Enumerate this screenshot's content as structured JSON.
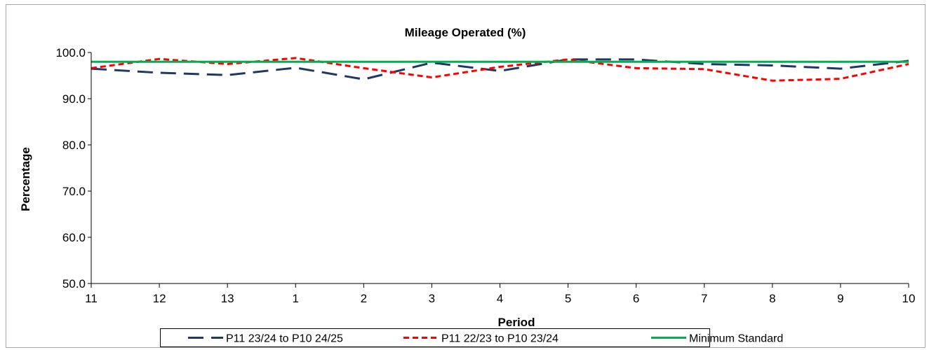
{
  "chart_data": {
    "type": "line",
    "title": "Mileage Operated (%)",
    "xlabel": "Period",
    "ylabel": "Percentage",
    "categories": [
      "11",
      "12",
      "13",
      "1",
      "2",
      "3",
      "4",
      "5",
      "6",
      "7",
      "8",
      "9",
      "10"
    ],
    "ylim": [
      50,
      100
    ],
    "yticks": [
      "50.0",
      "60.0",
      "70.0",
      "80.0",
      "90.0",
      "100.0"
    ],
    "grid": false,
    "legend_position": "bottom",
    "series": [
      {
        "name": "P11 23/24 to P10 24/25",
        "color": "#1f3864",
        "dash": "long-dash",
        "values": [
          96.5,
          95.6,
          95.1,
          96.7,
          94.2,
          97.8,
          96.0,
          98.5,
          98.5,
          97.5,
          97.2,
          96.5,
          98.2
        ]
      },
      {
        "name": "P11 22/23 to P10 23/24",
        "color": "#ff0000",
        "dash": "short-dash",
        "values": [
          96.6,
          98.6,
          97.5,
          98.8,
          96.6,
          94.6,
          96.9,
          98.5,
          96.6,
          96.4,
          93.9,
          94.3,
          97.5
        ]
      },
      {
        "name": "Minimum Standard",
        "color": "#00b050",
        "dash": "solid",
        "values": [
          98.0,
          98.0,
          98.0,
          98.0,
          98.0,
          98.0,
          98.0,
          98.0,
          98.0,
          98.0,
          98.0,
          98.0,
          98.0
        ]
      }
    ]
  }
}
